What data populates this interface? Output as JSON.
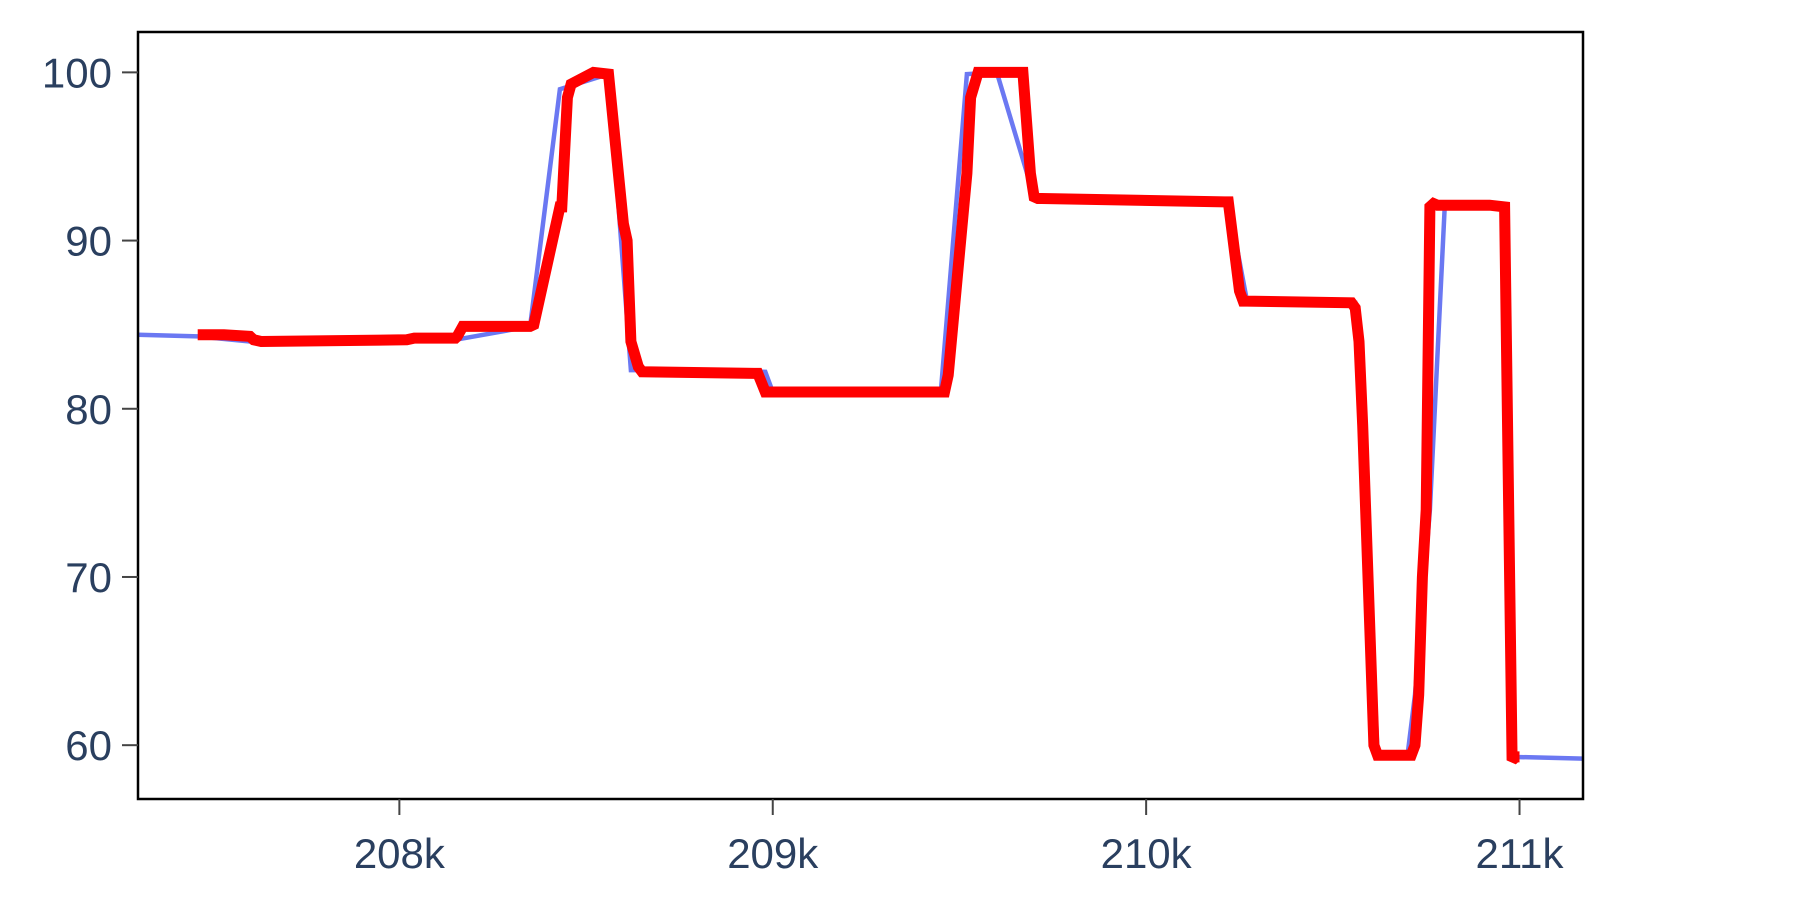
{
  "chart_data": {
    "type": "line",
    "title": "",
    "xlabel": "",
    "ylabel": "",
    "xlim": [
      207300,
      211170
    ],
    "ylim": [
      56.8,
      102.4
    ],
    "x_ticks": [
      {
        "value": 208000,
        "label": "208k"
      },
      {
        "value": 209000,
        "label": "209k"
      },
      {
        "value": 210000,
        "label": "210k"
      },
      {
        "value": 211000,
        "label": "211k"
      }
    ],
    "y_ticks": [
      {
        "value": 60,
        "label": "60"
      },
      {
        "value": 70,
        "label": "70"
      },
      {
        "value": 80,
        "label": "80"
      },
      {
        "value": 90,
        "label": "90"
      },
      {
        "value": 100,
        "label": "100"
      }
    ],
    "grid": false,
    "legend": "none",
    "colors": {
      "baseline": "#6b78f2",
      "highlight": "#ff0000"
    },
    "series": [
      {
        "color": "#6b78f2",
        "x": [
          207300,
          207460,
          207600,
          208000,
          208150,
          208350,
          208430,
          208560,
          208620,
          208980,
          209000,
          209450,
          209520,
          209600,
          209700,
          209730,
          210220,
          210270,
          210560,
          210580,
          210620,
          210700,
          210720,
          210760,
          210800,
          210960,
          210980,
          211170
        ],
        "y": [
          84.4,
          84.3,
          84.0,
          84.1,
          84.1,
          84.9,
          99.0,
          99.9,
          82.3,
          82.2,
          81.0,
          81.0,
          99.9,
          100.0,
          92.6,
          92.5,
          92.3,
          86.4,
          86.3,
          79.0,
          59.4,
          59.4,
          63.0,
          74.0,
          92.1,
          92.1,
          59.3,
          59.2
        ]
      },
      {
        "color": "#ff0000",
        "x": [
          207460,
          207530,
          207600,
          207610,
          207630,
          208020,
          208040,
          208150,
          208155,
          208170,
          208350,
          208360,
          208430,
          208435,
          208450,
          208460,
          208520,
          208560,
          208600,
          208610,
          208620,
          208640,
          208650,
          208950,
          208960,
          208980,
          208990,
          209000,
          209460,
          209470,
          209520,
          209530,
          209550,
          209560,
          209670,
          209690,
          209700,
          209710,
          209720,
          210210,
          210220,
          210250,
          210260,
          210270,
          210550,
          210560,
          210570,
          210580,
          210610,
          210620,
          210710,
          210720,
          210730,
          210740,
          210750,
          210760,
          210770,
          210780,
          210800,
          210920,
          210960,
          210980,
          210990,
          211000
        ],
        "y": [
          84.4,
          84.4,
          84.3,
          84.1,
          84.0,
          84.1,
          84.2,
          84.2,
          84.3,
          84.9,
          84.9,
          85.0,
          92.0,
          92.0,
          98.5,
          99.3,
          100.0,
          99.9,
          91.0,
          90.0,
          84.0,
          82.5,
          82.2,
          82.1,
          82.1,
          81.0,
          81.0,
          81.0,
          81.0,
          82.0,
          94.0,
          98.5,
          100.0,
          100.0,
          100.0,
          94.0,
          92.6,
          92.5,
          92.5,
          92.3,
          92.3,
          87.0,
          86.4,
          86.4,
          86.3,
          86.0,
          84.0,
          79.0,
          60.0,
          59.4,
          59.4,
          60.0,
          63.0,
          70.0,
          74.0,
          92.0,
          92.2,
          92.1,
          92.1,
          92.1,
          92.0,
          59.1,
          59.3,
          59.3
        ]
      }
    ]
  }
}
